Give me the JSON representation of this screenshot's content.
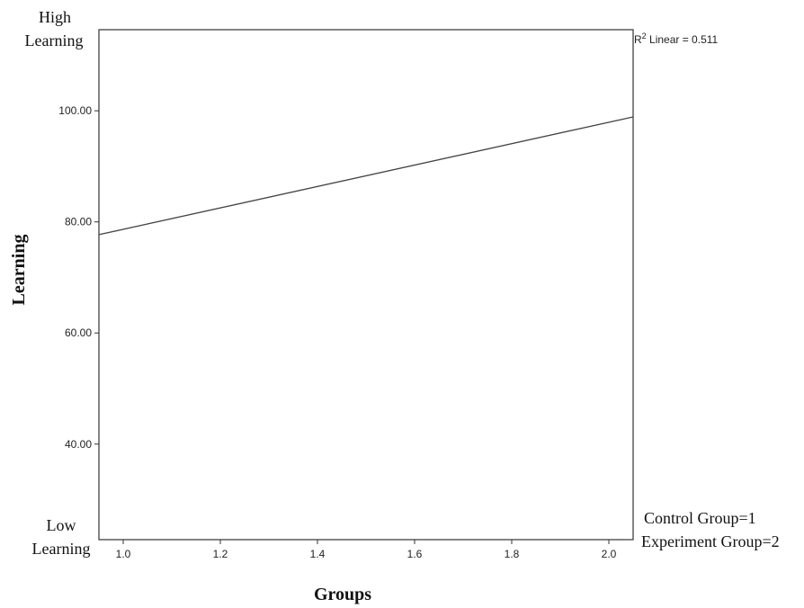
{
  "chart_data": {
    "type": "line",
    "title": "",
    "xlabel": "Groups",
    "ylabel": "Learning",
    "xlim": [
      0.95,
      2.05
    ],
    "ylim": [
      22.8,
      114.6
    ],
    "x_ticks": [
      1.0,
      1.2,
      1.4,
      1.6,
      1.8,
      2.0
    ],
    "x_tick_labels": [
      "1.0",
      "1.2",
      "1.4",
      "1.6",
      "1.8",
      "2.0"
    ],
    "y_ticks": [
      40,
      60,
      80,
      100
    ],
    "y_tick_labels": [
      "40.00",
      "60.00",
      "80.00",
      "100.00"
    ],
    "grid": false,
    "series": [
      {
        "x": [
          0.95,
          2.05
        ],
        "y": [
          77.7,
          98.9
        ],
        "color": "#444444"
      }
    ],
    "annotations": {
      "r2_prefix": "R",
      "r2_sup": "2",
      "r2_text": " Linear = 0.511",
      "y_top_line1": "High",
      "y_top_line2": "Learning",
      "y_bottom_line1": "Low",
      "y_bottom_line2": "Learning",
      "legend_line1": "Control Group=1",
      "legend_line2": "Experiment Group=2"
    }
  }
}
